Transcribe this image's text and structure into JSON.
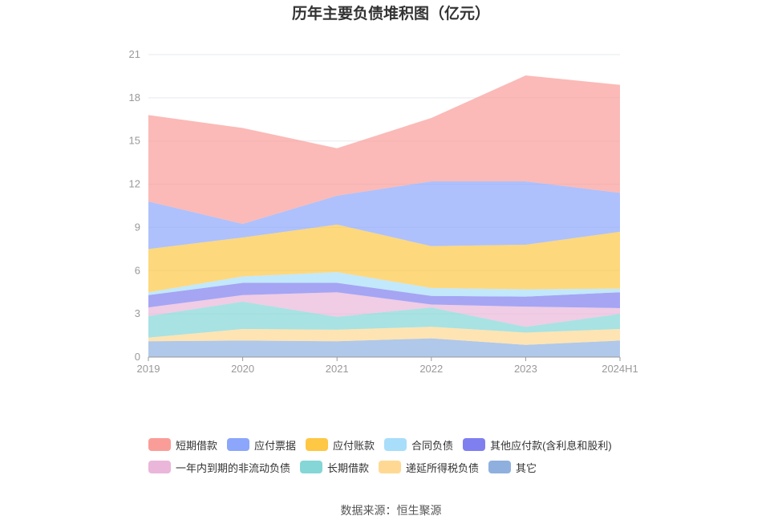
{
  "chart_data": {
    "type": "area",
    "stacked": true,
    "title": "历年主要负债堆积图（亿元）",
    "x": [
      "2019",
      "2020",
      "2021",
      "2022",
      "2023",
      "2024H1"
    ],
    "yticks": [
      "0",
      "3",
      "6",
      "9",
      "12",
      "15",
      "18",
      "21"
    ],
    "ylim": [
      0,
      21
    ],
    "grid": true,
    "legend_position": "bottom",
    "series": [
      {
        "name": "其它",
        "values": [
          1.1,
          1.15,
          1.1,
          1.3,
          0.85,
          1.15
        ],
        "color": "#8fb0df"
      },
      {
        "name": "递延所得税负债",
        "values": [
          0.25,
          0.8,
          0.8,
          0.8,
          0.85,
          0.8
        ],
        "color": "#ffd993"
      },
      {
        "name": "长期借款",
        "values": [
          1.5,
          1.9,
          0.9,
          1.35,
          0.4,
          1.05
        ],
        "color": "#85d6d6"
      },
      {
        "name": "一年内到期的非流动负债",
        "values": [
          0.6,
          0.45,
          1.7,
          0.2,
          1.4,
          0.4
        ],
        "color": "#eab6da"
      },
      {
        "name": "其他应付款(含利息和股利)",
        "values": [
          0.85,
          0.85,
          0.65,
          0.6,
          0.7,
          1.1
        ],
        "color": "#7f7ff0"
      },
      {
        "name": "合同负债",
        "values": [
          0.2,
          0.45,
          0.75,
          0.55,
          0.5,
          0.25
        ],
        "color": "#a8defa"
      },
      {
        "name": "应付账款",
        "values": [
          3.0,
          2.7,
          3.3,
          2.9,
          3.1,
          3.95
        ],
        "color": "#fec744"
      },
      {
        "name": "应付票据",
        "values": [
          3.3,
          0.95,
          2.0,
          4.5,
          4.4,
          2.7
        ],
        "color": "#8ba6fb"
      },
      {
        "name": "短期借款",
        "values": [
          6.0,
          6.65,
          3.3,
          4.4,
          7.35,
          7.5
        ],
        "color": "#fa9d98"
      }
    ]
  },
  "legend": [
    {
      "label": "短期借款",
      "color": "#fa9d98"
    },
    {
      "label": "应付票据",
      "color": "#8ba6fb"
    },
    {
      "label": "应付账款",
      "color": "#fec744"
    },
    {
      "label": "合同负债",
      "color": "#a8defa"
    },
    {
      "label": "其他应付款(含利息和股利)",
      "color": "#7f7ff0"
    },
    {
      "label": "一年内到期的非流动负债",
      "color": "#eab6da"
    },
    {
      "label": "长期借款",
      "color": "#85d6d6"
    },
    {
      "label": "递延所得税负债",
      "color": "#ffd993"
    },
    {
      "label": "其它",
      "color": "#8fb0df"
    }
  ],
  "source": "数据来源：恒生聚源"
}
